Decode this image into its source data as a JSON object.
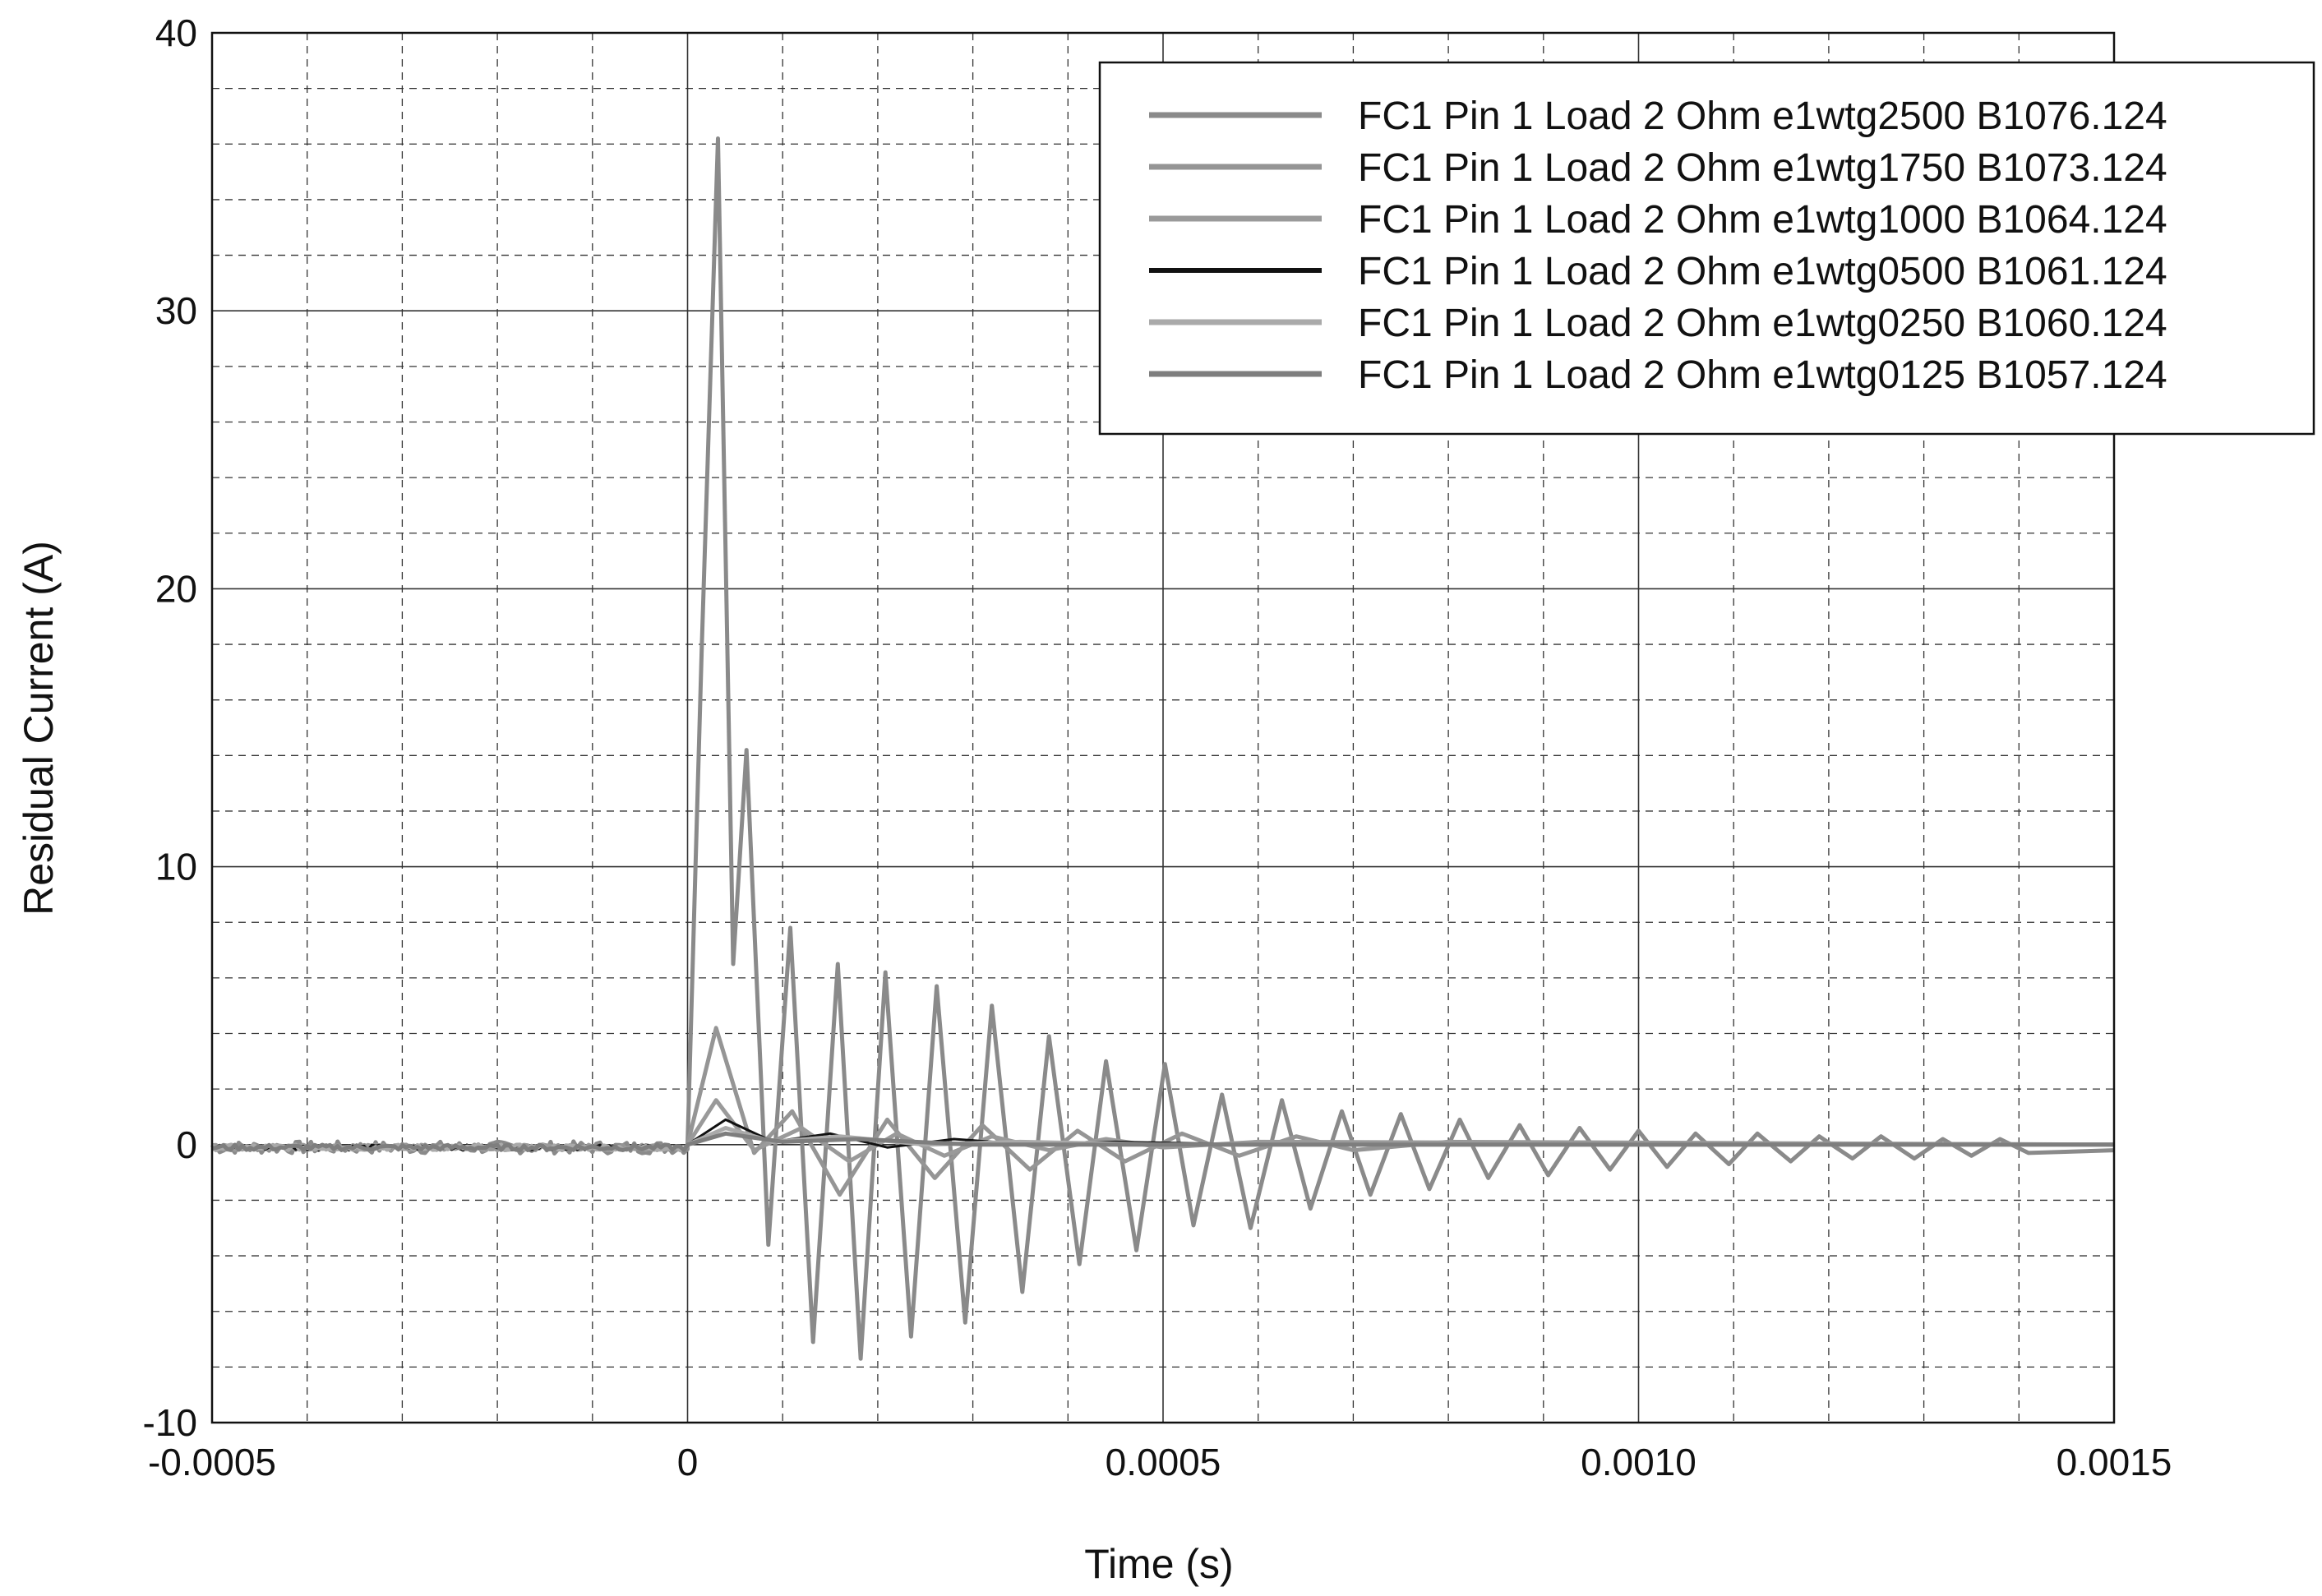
{
  "chart_data": {
    "type": "line",
    "title": "",
    "xlabel": "Time (s)",
    "ylabel": "Residual Current (A)",
    "xlim": [
      -0.0005,
      0.0015
    ],
    "ylim": [
      -10,
      40
    ],
    "grid": true,
    "legend_position": "top-right",
    "x_ticks": [
      {
        "value": -0.0005,
        "label": "-0.0005"
      },
      {
        "value": 0,
        "label": "0"
      },
      {
        "value": 0.0005,
        "label": "0.0005"
      },
      {
        "value": 0.001,
        "label": "0.0010"
      },
      {
        "value": 0.0015,
        "label": "0.0015"
      }
    ],
    "y_ticks": [
      {
        "value": -10,
        "label": "-10"
      },
      {
        "value": 0,
        "label": "0"
      },
      {
        "value": 10,
        "label": "10"
      },
      {
        "value": 20,
        "label": "20"
      },
      {
        "value": 30,
        "label": "30"
      },
      {
        "value": 40,
        "label": "40"
      }
    ],
    "series": [
      {
        "name": "FC1 Pin 1 Load 2 Ohm e1wtg2500 B1076.124",
        "color": "#8a8a8a",
        "x": [
          0,
          1.5e-05,
          3.2e-05,
          4.8e-05,
          6.2e-05,
          8.5e-05,
          0.000108,
          0.000132,
          0.000158,
          0.000182,
          0.000208,
          0.000235,
          0.000262,
          0.000292,
          0.00032,
          0.000352,
          0.00038,
          0.000412,
          0.00044,
          0.000472,
          0.000502,
          0.000532,
          0.000562,
          0.000592,
          0.000625,
          0.000655,
          0.000688,
          0.000718,
          0.00075,
          0.00078,
          0.000812,
          0.000842,
          0.000875,
          0.000905,
          0.000938,
          0.00097,
          0.001,
          0.00103,
          0.00106,
          0.001095,
          0.001125,
          0.00116,
          0.00119,
          0.001225,
          0.001255,
          0.00129,
          0.00132,
          0.00135,
          0.00138,
          0.00141,
          0.0015
        ],
        "y": [
          0,
          18,
          36.2,
          6.5,
          14.2,
          -3.6,
          7.8,
          -7.1,
          6.5,
          -7.7,
          6.2,
          -6.9,
          5.7,
          -6.4,
          5.0,
          -5.3,
          3.9,
          -4.3,
          3.0,
          -3.8,
          2.9,
          -2.9,
          1.8,
          -3.0,
          1.6,
          -2.3,
          1.2,
          -1.8,
          1.1,
          -1.6,
          0.9,
          -1.2,
          0.7,
          -1.1,
          0.6,
          -0.9,
          0.5,
          -0.8,
          0.4,
          -0.7,
          0.4,
          -0.6,
          0.3,
          -0.5,
          0.3,
          -0.5,
          0.2,
          -0.4,
          0.2,
          -0.3,
          -0.2
        ]
      },
      {
        "name": "FC1 Pin 1 Load 2 Ohm e1wtg1750 B1073.124",
        "color": "#959595",
        "x": [
          0,
          3e-05,
          7e-05,
          0.00011,
          0.00016,
          0.00021,
          0.00026,
          0.00031,
          0.00036,
          0.00041,
          0.00046,
          0.00052,
          0.00058,
          0.00064,
          0.0007,
          0.0008,
          0.0015
        ],
        "y": [
          0,
          4.2,
          -0.3,
          1.2,
          -1.8,
          0.9,
          -1.2,
          0.7,
          -0.9,
          0.5,
          -0.6,
          0.4,
          -0.4,
          0.3,
          -0.2,
          0.1,
          0
        ]
      },
      {
        "name": "FC1 Pin 1 Load 2 Ohm e1wtg1000 B1064.124",
        "color": "#9a9a9a",
        "x": [
          0,
          3e-05,
          7e-05,
          0.00012,
          0.00017,
          0.00022,
          0.00027,
          0.00032,
          0.00038,
          0.00044,
          0.0005,
          0.0006,
          0.0015
        ],
        "y": [
          0,
          1.6,
          -0.2,
          0.6,
          -0.6,
          0.4,
          -0.4,
          0.3,
          -0.2,
          0.2,
          -0.1,
          0.1,
          0
        ]
      },
      {
        "name": "FC1 Pin 1 Load 2 Ohm e1wtg0500 B1061.124",
        "color": "#111111",
        "x": [
          0,
          4e-05,
          9e-05,
          0.00015,
          0.00021,
          0.00028,
          0.00036,
          0.00045,
          0.0006,
          0.0015
        ],
        "y": [
          0,
          0.9,
          0.1,
          0.4,
          -0.1,
          0.2,
          0,
          0.1,
          0,
          0
        ]
      },
      {
        "name": "FC1 Pin 1 Load 2 Ohm e1wtg0250 B1060.124",
        "color": "#aaaaaa",
        "x": [
          0,
          4e-05,
          9e-05,
          0.00016,
          0.00025,
          0.00035,
          0.0005,
          0.0015
        ],
        "y": [
          0,
          0.6,
          0.1,
          0.3,
          0,
          0.1,
          0,
          0
        ]
      },
      {
        "name": "FC1 Pin 1 Load 2 Ohm e1wtg0125 B1057.124",
        "color": "#7e7e7e",
        "x": [
          0,
          4e-05,
          0.0001,
          0.00018,
          0.0003,
          0.0015
        ],
        "y": [
          0,
          0.4,
          0.1,
          0.2,
          0,
          0
        ]
      }
    ]
  }
}
